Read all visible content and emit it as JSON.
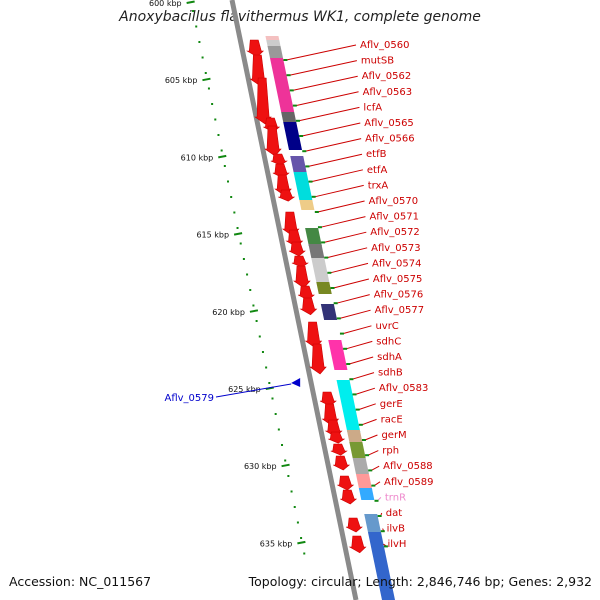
{
  "title": "Anoxybacillus flavithermus WK1, complete genome",
  "footer": {
    "accession": "Accession: NC_011567",
    "summary": "Topology: circular; Length: 2,846,746 bp; Genes: 2,932"
  },
  "colors": {
    "backbone": "#8a8a8a",
    "gene": "#ee1111",
    "label": "#cc0000",
    "tick": "#118811",
    "highlight": "#0000cc",
    "rna": "#ee88cc"
  },
  "ticks": [
    {
      "label": "600 kbp"
    },
    {
      "label": "605 kbp"
    },
    {
      "label": "610 kbp"
    },
    {
      "label": "615 kbp"
    },
    {
      "label": "620 kbp"
    },
    {
      "label": "625 kbp"
    },
    {
      "label": "630 kbp"
    },
    {
      "label": "635 kbp"
    }
  ],
  "genes": [
    {
      "name": "Aflv_0560"
    },
    {
      "name": "mutSB"
    },
    {
      "name": "Aflv_0562"
    },
    {
      "name": "Aflv_0563"
    },
    {
      "name": "lcfA"
    },
    {
      "name": "Aflv_0565"
    },
    {
      "name": "Aflv_0566"
    },
    {
      "name": "etfB"
    },
    {
      "name": "etfA"
    },
    {
      "name": "trxA"
    },
    {
      "name": "Aflv_0570"
    },
    {
      "name": "Aflv_0571"
    },
    {
      "name": "Aflv_0572"
    },
    {
      "name": "Aflv_0573"
    },
    {
      "name": "Aflv_0574"
    },
    {
      "name": "Aflv_0575"
    },
    {
      "name": "Aflv_0576"
    },
    {
      "name": "Aflv_0577"
    },
    {
      "name": "uvrC"
    },
    {
      "name": "sdhC"
    },
    {
      "name": "sdhA"
    },
    {
      "name": "sdhB"
    },
    {
      "name": "Aflv_0583"
    },
    {
      "name": "gerE"
    },
    {
      "name": "racE"
    },
    {
      "name": "gerM"
    },
    {
      "name": "rph"
    },
    {
      "name": "Aflv_0588"
    },
    {
      "name": "Aflv_0589"
    },
    {
      "name": "trnR",
      "rna": true
    },
    {
      "name": "dat"
    },
    {
      "name": "ilvB"
    },
    {
      "name": "ilvH"
    }
  ],
  "highlight_gene": {
    "name": "Aflv_0579"
  }
}
